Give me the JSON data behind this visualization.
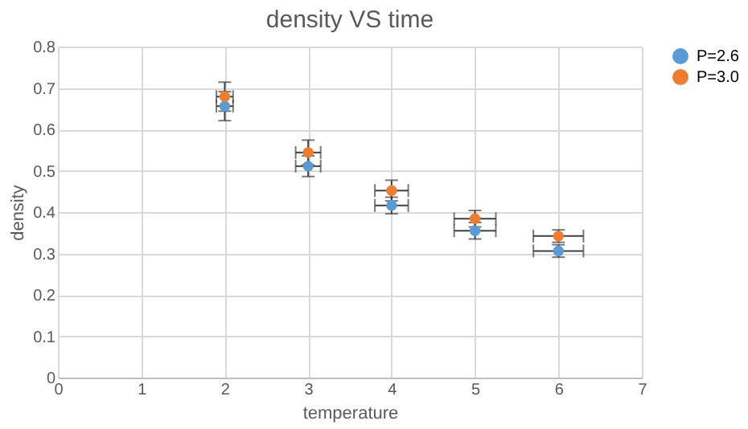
{
  "chart_data": {
    "type": "scatter",
    "title": "density VS time",
    "xlabel": "temperature",
    "ylabel": "density",
    "x": [
      2,
      3,
      4,
      5,
      6
    ],
    "series": [
      {
        "name": "P=2.6",
        "color": "#5b9bd5",
        "values": [
          0.656,
          0.511,
          0.416,
          0.355,
          0.306
        ],
        "errors": [
          0.035,
          0.025,
          0.02,
          0.02,
          0.015
        ],
        "xerrors": [
          0.1,
          0.15,
          0.2,
          0.25,
          0.3
        ]
      },
      {
        "name": "P=3.0",
        "color": "#ed7d31",
        "values": [
          0.679,
          0.544,
          0.452,
          0.384,
          0.342
        ],
        "errors": [
          0.035,
          0.03,
          0.025,
          0.02,
          0.015
        ],
        "xerrors": [
          0.1,
          0.15,
          0.2,
          0.25,
          0.3
        ]
      }
    ],
    "xlim": [
      0,
      7
    ],
    "xticks": [
      0,
      1,
      2,
      3,
      4,
      5,
      6,
      7
    ],
    "ylim": [
      0,
      0.8
    ],
    "yticks": [
      0,
      0.1,
      0.2,
      0.3,
      0.4,
      0.5,
      0.6,
      0.7,
      0.8
    ],
    "grid": true,
    "legend": "right",
    "marker": "circle"
  }
}
